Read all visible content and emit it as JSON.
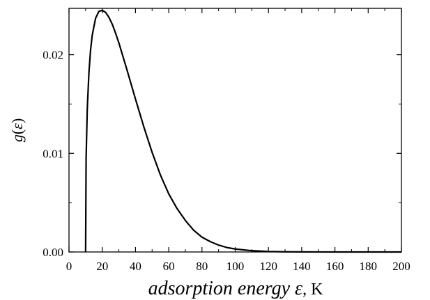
{
  "chart_data": {
    "type": "line",
    "title": "",
    "xlabel_italic": "adsorption energy ε",
    "xlabel_unit": ", K",
    "ylabel_main": "g(",
    "ylabel_var": "ε",
    "ylabel_close": ")",
    "xlim": [
      0,
      200
    ],
    "ylim": [
      0,
      0.0247
    ],
    "x_ticks": [
      0,
      20,
      40,
      60,
      80,
      100,
      120,
      140,
      160,
      180,
      200
    ],
    "y_ticks": [
      0.0,
      0.01,
      0.02
    ],
    "y_tick_labels": [
      "0.00",
      "0.01",
      "0.02"
    ],
    "grid": false,
    "line_color": "#000000",
    "series": [
      {
        "x": [
          10,
          10.3,
          11,
          12,
          13,
          14,
          16,
          18,
          20,
          22,
          24,
          26,
          28,
          30,
          35,
          40,
          45,
          50,
          55,
          60,
          65,
          70,
          75,
          80,
          85,
          90,
          95,
          100,
          110,
          120,
          130,
          140,
          150,
          160,
          180,
          200
        ],
        "y": [
          0,
          0.0095,
          0.0145,
          0.0182,
          0.0205,
          0.022,
          0.0237,
          0.0244,
          0.0245,
          0.0243,
          0.0238,
          0.0231,
          0.0222,
          0.0212,
          0.0184,
          0.0155,
          0.0127,
          0.0101,
          0.0078,
          0.0059,
          0.0044,
          0.0032,
          0.0022,
          0.0015,
          0.00105,
          0.0007,
          0.00045,
          0.0003,
          0.00013,
          5e-05,
          2e-05,
          1e-05,
          4e-06,
          2e-06,
          5e-07,
          1e-07
        ]
      }
    ]
  }
}
